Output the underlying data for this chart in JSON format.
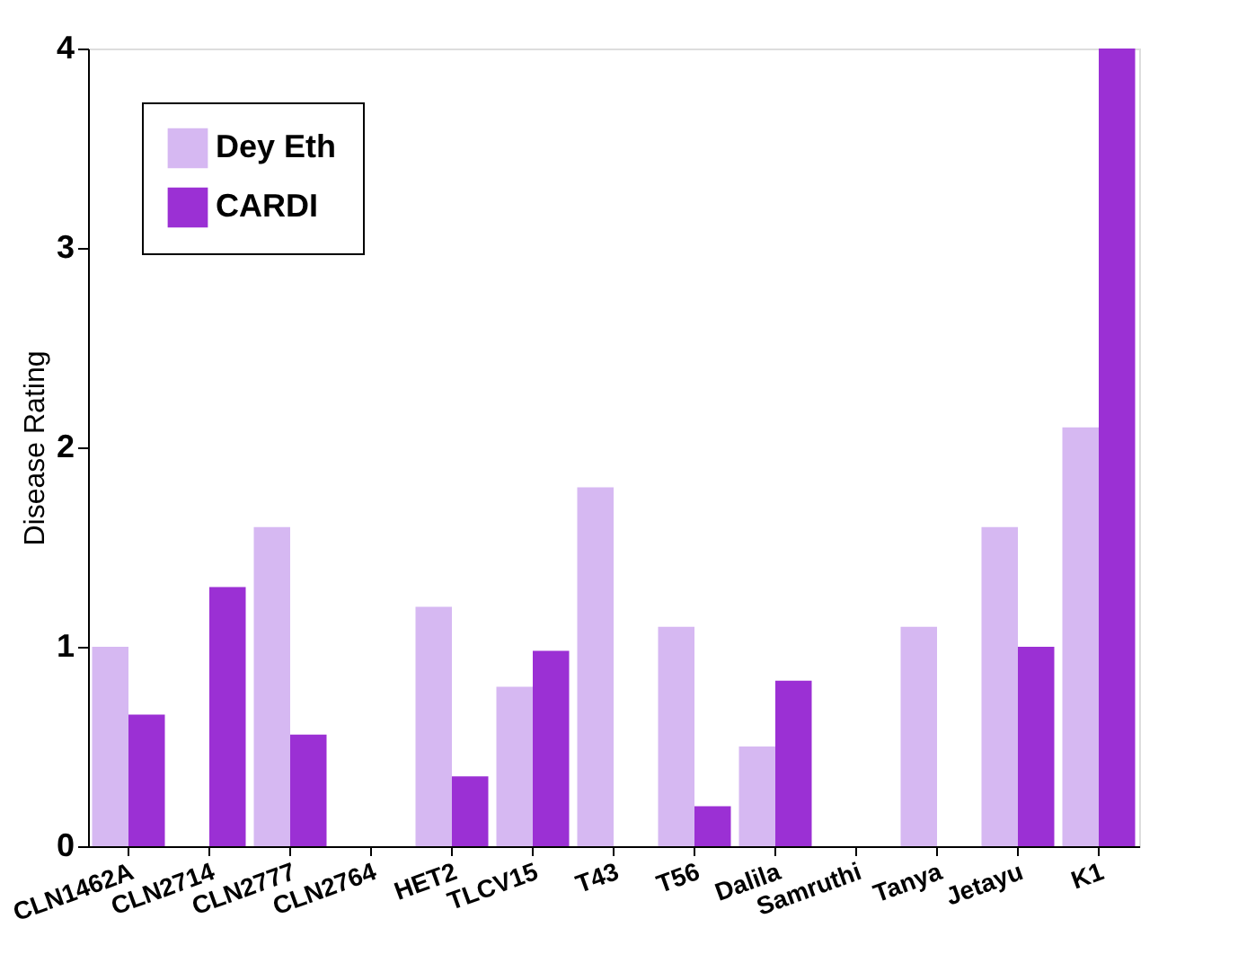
{
  "chart_data": {
    "type": "bar",
    "ylabel": "Disease Rating",
    "categories": [
      "CLN1462A",
      "CLN2714",
      "CLN2777",
      "CLN2764",
      "HET2",
      "TLCV15",
      "T43",
      "T56",
      "Dalila",
      "Samruthi",
      "Tanya",
      "Jetayu",
      "K1"
    ],
    "series": [
      {
        "name": "Dey Eth",
        "color": "#d6b8f2",
        "values": [
          1.0,
          null,
          1.6,
          null,
          1.2,
          0.8,
          1.8,
          1.1,
          0.5,
          null,
          1.1,
          1.6,
          2.1
        ]
      },
      {
        "name": "CARDI",
        "color": "#9b30d4",
        "values": [
          0.66,
          1.3,
          0.56,
          null,
          0.35,
          0.98,
          null,
          0.2,
          0.83,
          null,
          null,
          1.0,
          4.0
        ]
      }
    ],
    "ylim": [
      0,
      4
    ],
    "yticks": [
      0,
      1,
      2,
      3,
      4
    ],
    "grid": false,
    "legend": "top left"
  }
}
